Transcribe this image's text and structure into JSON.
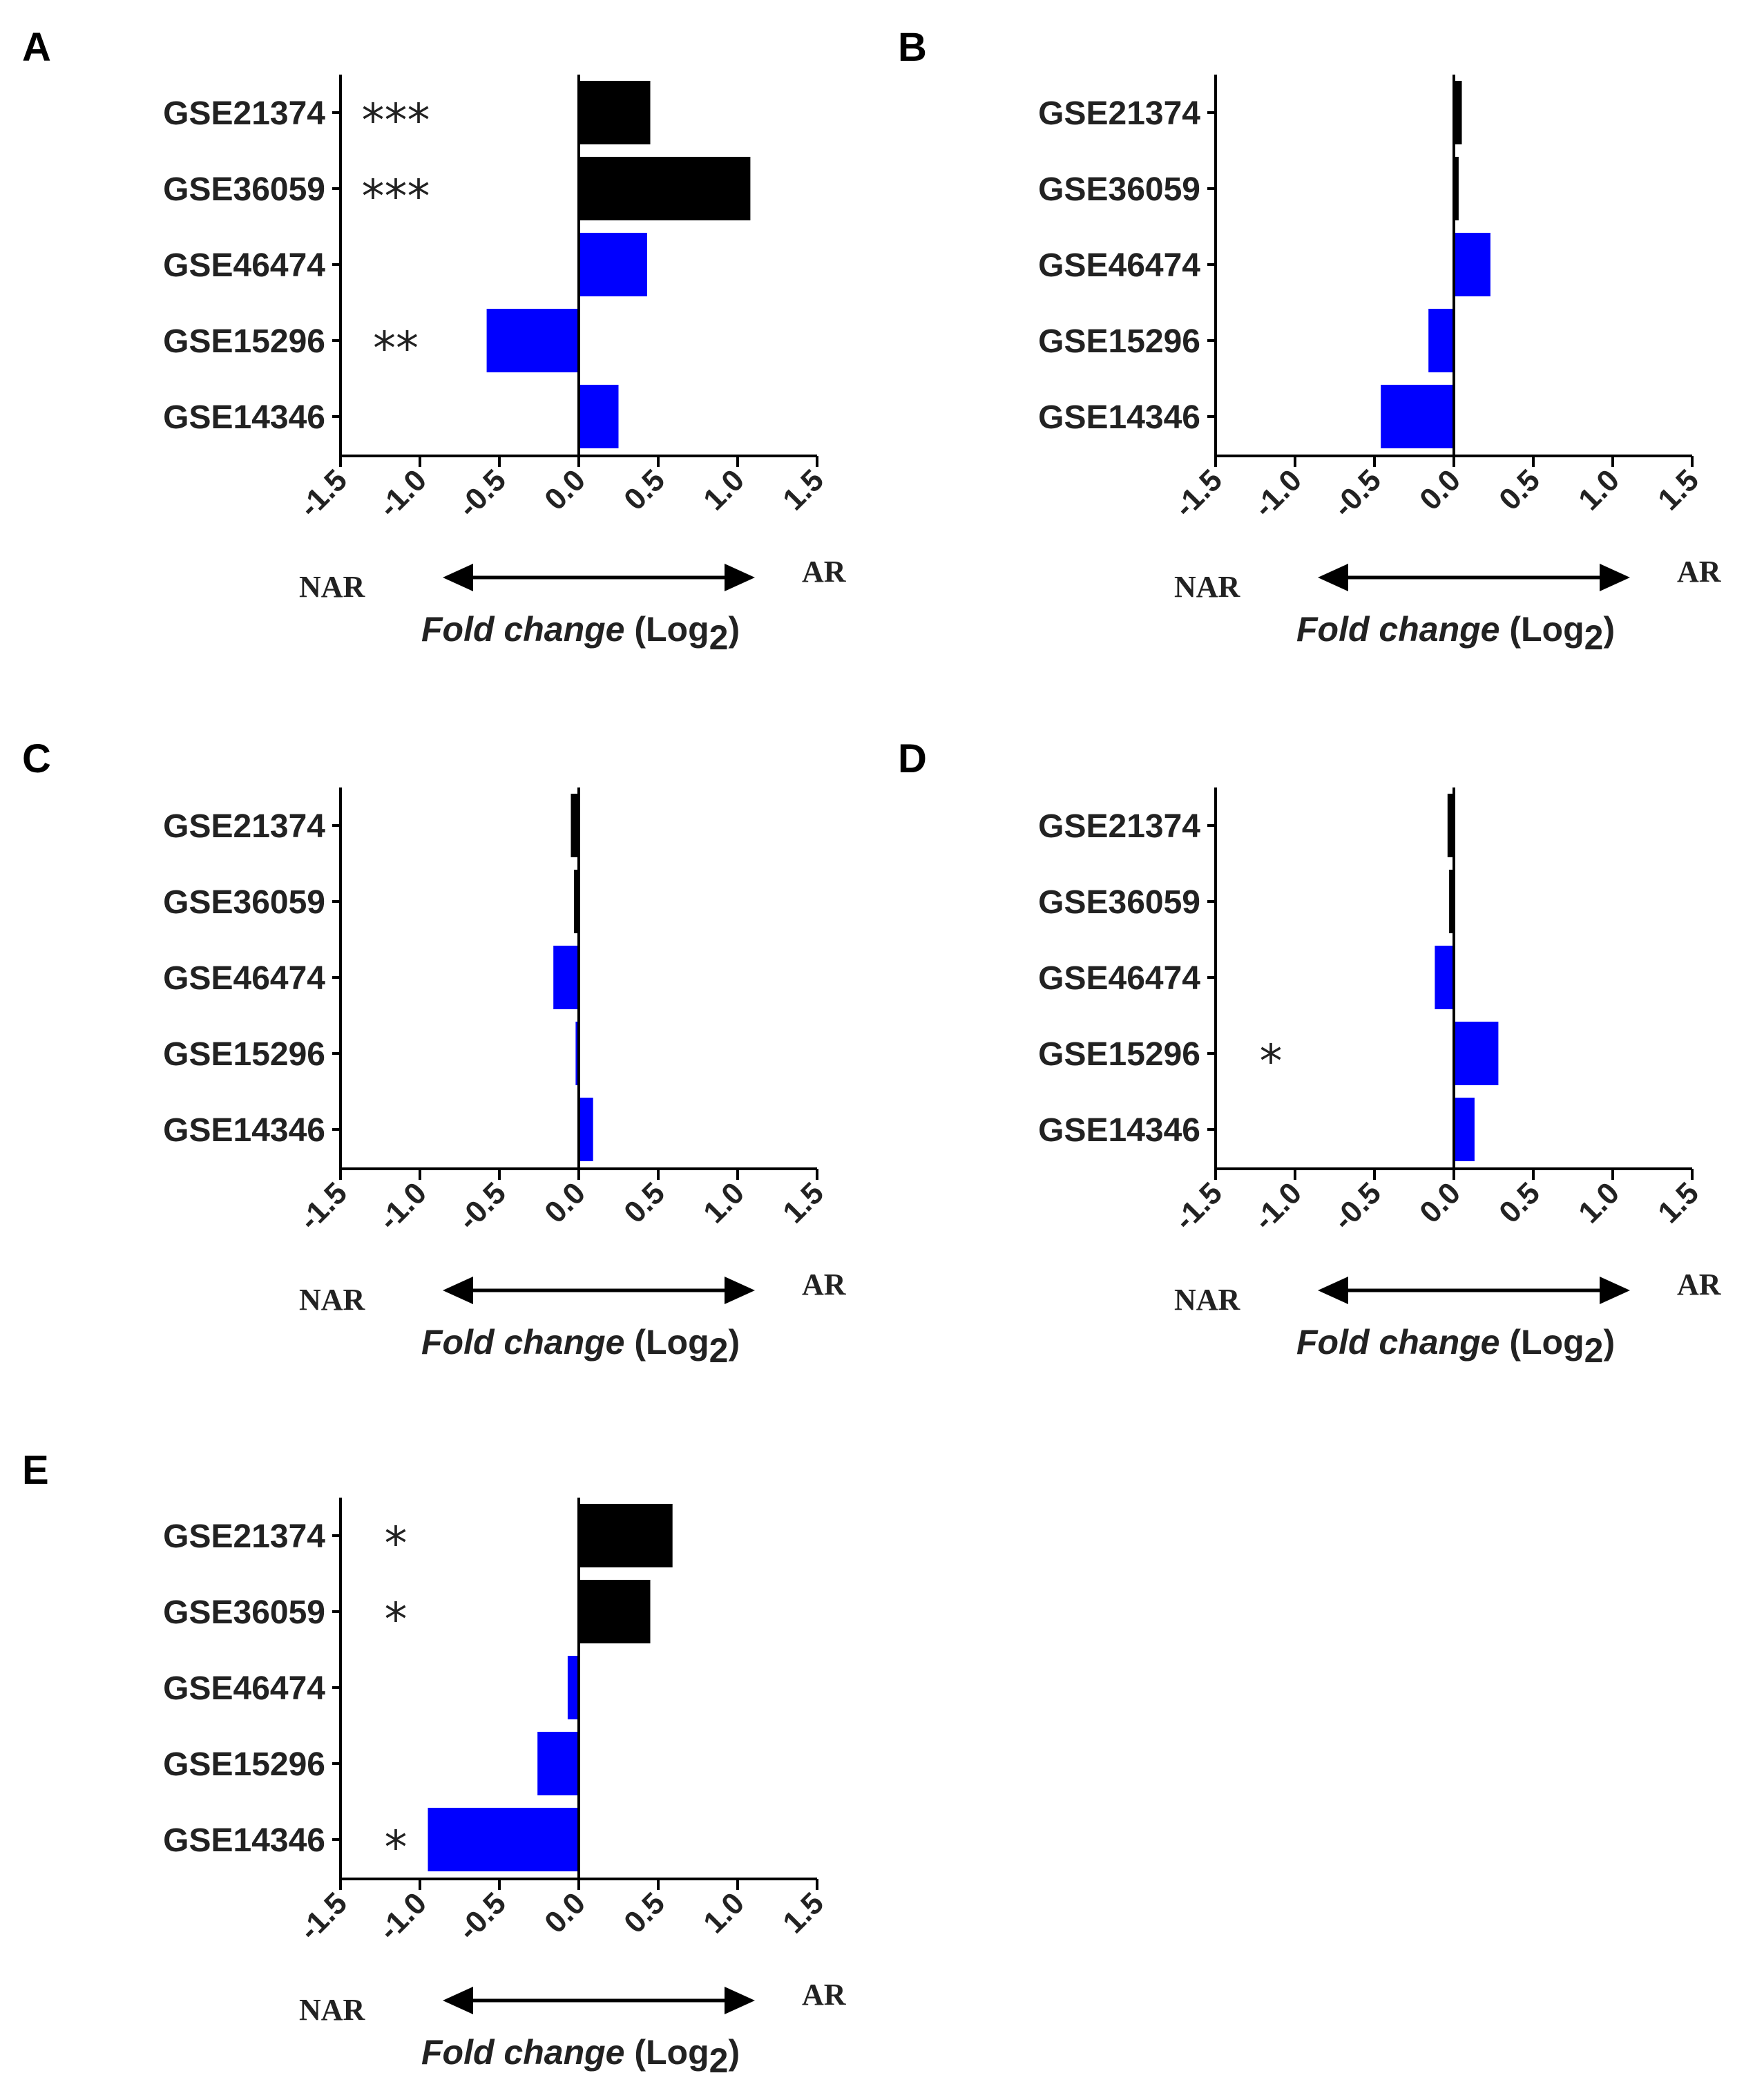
{
  "figure": {
    "colors": {
      "group1": "#000000",
      "group2": "#0000ff",
      "axis": "#000000",
      "text": "#222222"
    }
  },
  "chart_data": [
    {
      "panel": "A",
      "type": "bar",
      "orientation": "horizontal",
      "categories": [
        "GSE21374",
        "GSE36059",
        "GSE46474",
        "GSE15296",
        "GSE14346"
      ],
      "values": [
        0.45,
        1.08,
        0.43,
        -0.58,
        0.25
      ],
      "series_color": [
        "group1",
        "group1",
        "group2",
        "group2",
        "group2"
      ],
      "significance": [
        "***",
        "***",
        "",
        "**",
        ""
      ],
      "xlim": [
        -1.5,
        1.5
      ],
      "xticks": [
        "-1.5",
        "-1.0",
        "-0.5",
        "0.0",
        "0.5",
        "1.0",
        "1.5"
      ],
      "xlabel": "Fold change",
      "xlabel_unit": "(Log",
      "xlabel_sub": "2",
      "xlabel_close": ")",
      "left_label": "NAR",
      "right_label": "AR"
    },
    {
      "panel": "B",
      "type": "bar",
      "orientation": "horizontal",
      "categories": [
        "GSE21374",
        "GSE36059",
        "GSE46474",
        "GSE15296",
        "GSE14346"
      ],
      "values": [
        0.05,
        0.03,
        0.23,
        -0.16,
        -0.46
      ],
      "series_color": [
        "group1",
        "group1",
        "group2",
        "group2",
        "group2"
      ],
      "significance": [
        "",
        "",
        "",
        "",
        ""
      ],
      "xlim": [
        -1.5,
        1.5
      ],
      "xticks": [
        "-1.5",
        "-1.0",
        "-0.5",
        "0.0",
        "0.5",
        "1.0",
        "1.5"
      ],
      "xlabel": "Fold change",
      "xlabel_unit": "(Log",
      "xlabel_sub": "2",
      "xlabel_close": ")",
      "left_label": "NAR",
      "right_label": "AR"
    },
    {
      "panel": "C",
      "type": "bar",
      "orientation": "horizontal",
      "categories": [
        "GSE21374",
        "GSE36059",
        "GSE46474",
        "GSE15296",
        "GSE14346"
      ],
      "values": [
        -0.05,
        -0.03,
        -0.16,
        -0.02,
        0.09
      ],
      "series_color": [
        "group1",
        "group1",
        "group2",
        "group2",
        "group2"
      ],
      "significance": [
        "",
        "",
        "",
        "",
        ""
      ],
      "xlim": [
        -1.5,
        1.5
      ],
      "xticks": [
        "-1.5",
        "-1.0",
        "-0.5",
        "0.0",
        "0.5",
        "1.0",
        "1.5"
      ],
      "xlabel": "Fold change",
      "xlabel_unit": "(Log",
      "xlabel_sub": "2",
      "xlabel_close": ")",
      "left_label": "NAR",
      "right_label": "AR"
    },
    {
      "panel": "D",
      "type": "bar",
      "orientation": "horizontal",
      "categories": [
        "GSE21374",
        "GSE36059",
        "GSE46474",
        "GSE15296",
        "GSE14346"
      ],
      "values": [
        -0.04,
        -0.03,
        -0.12,
        0.28,
        0.13
      ],
      "series_color": [
        "group1",
        "group1",
        "group2",
        "group2",
        "group2"
      ],
      "significance": [
        "",
        "",
        "",
        "*",
        ""
      ],
      "xlim": [
        -1.5,
        1.5
      ],
      "xticks": [
        "-1.5",
        "-1.0",
        "-0.5",
        "0.0",
        "0.5",
        "1.0",
        "1.5"
      ],
      "xlabel": "Fold change",
      "xlabel_unit": "(Log",
      "xlabel_sub": "2",
      "xlabel_close": ")",
      "left_label": "NAR",
      "right_label": "AR"
    },
    {
      "panel": "E",
      "type": "bar",
      "orientation": "horizontal",
      "categories": [
        "GSE21374",
        "GSE36059",
        "GSE46474",
        "GSE15296",
        "GSE14346"
      ],
      "values": [
        0.59,
        0.45,
        -0.07,
        -0.26,
        -0.95
      ],
      "series_color": [
        "group1",
        "group1",
        "group2",
        "group2",
        "group2"
      ],
      "significance": [
        "*",
        "*",
        "",
        "",
        "*"
      ],
      "xlim": [
        -1.5,
        1.5
      ],
      "xticks": [
        "-1.5",
        "-1.0",
        "-0.5",
        "0.0",
        "0.5",
        "1.0",
        "1.5"
      ],
      "xlabel": "Fold change",
      "xlabel_unit": "(Log",
      "xlabel_sub": "2",
      "xlabel_close": ")",
      "left_label": "NAR",
      "right_label": "AR"
    }
  ]
}
